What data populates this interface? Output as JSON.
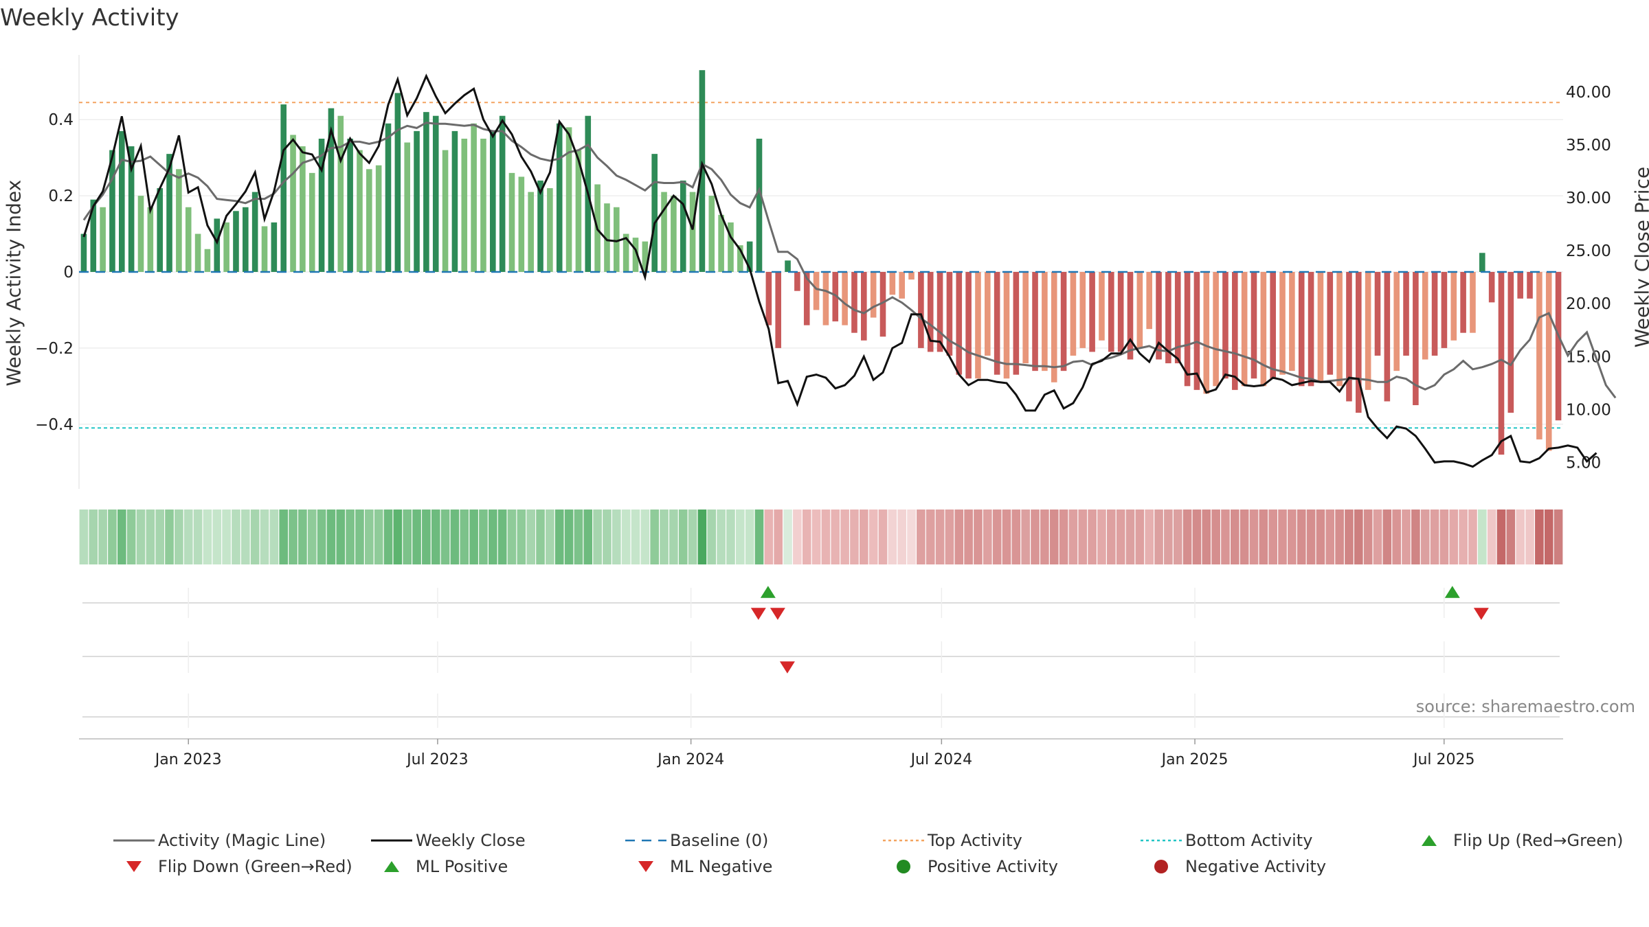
{
  "title": "Weekly Activity",
  "source_text": "source: sharemaestro.com",
  "colors": {
    "dark_green": "#2e8b57",
    "light_green": "#7fbf7b",
    "dark_red": "#c85a5a",
    "light_red": "#e8967a",
    "magic_line": "#6b6b6b",
    "close_line": "#111111",
    "baseline": "#1f77b4",
    "top_activity": "#f4a460",
    "bottom_activity": "#22c5c5",
    "flip_up": "#2ca02c",
    "flip_down": "#d62728",
    "positive_activity": "#228b22",
    "negative_activity": "#b22222"
  },
  "chart_data": {
    "type": "bar",
    "title": "Weekly Activity",
    "ylabel_left": "Weekly Activity Index",
    "ylabel_right": "Weekly Close Price",
    "ylim_left": [
      -0.57,
      0.57
    ],
    "ylim_right": [
      2.5,
      43.5
    ],
    "yticks_left": [
      {
        "v": 0.4,
        "label": "0.4"
      },
      {
        "v": 0.2,
        "label": "0.2"
      },
      {
        "v": 0.0,
        "label": "0"
      },
      {
        "v": -0.2,
        "label": "−0.2"
      },
      {
        "v": -0.4,
        "label": "−0.4"
      }
    ],
    "yticks_right": [
      "40.00",
      "35.00",
      "30.00",
      "25.00",
      "20.00",
      "15.00",
      "10.00",
      "5.00"
    ],
    "x_start": "2022-10-17",
    "x_end": "2025-09-22",
    "xticks": [
      {
        "date": "2023-01-01",
        "label": "Jan 2023"
      },
      {
        "date": "2023-07-01",
        "label": "Jul 2023"
      },
      {
        "date": "2024-01-01",
        "label": "Jan 2024"
      },
      {
        "date": "2024-07-01",
        "label": "Jul 2024"
      },
      {
        "date": "2025-01-01",
        "label": "Jan 2025"
      },
      {
        "date": "2025-07-01",
        "label": "Jul 2025"
      }
    ],
    "top_activity": 0.445,
    "bottom_activity": -0.41,
    "baseline": 0,
    "activity": [
      0.1,
      0.19,
      0.17,
      0.32,
      0.37,
      0.33,
      0.2,
      0.17,
      0.22,
      0.31,
      0.27,
      0.17,
      0.1,
      0.06,
      0.14,
      0.13,
      0.16,
      0.17,
      0.21,
      0.12,
      0.13,
      0.44,
      0.36,
      0.33,
      0.26,
      0.35,
      0.43,
      0.41,
      0.35,
      0.32,
      0.27,
      0.28,
      0.39,
      0.47,
      0.34,
      0.37,
      0.42,
      0.41,
      0.32,
      0.37,
      0.35,
      0.39,
      0.35,
      0.37,
      0.41,
      0.26,
      0.25,
      0.21,
      0.24,
      0.22,
      0.39,
      0.38,
      0.32,
      0.41,
      0.23,
      0.18,
      0.17,
      0.1,
      0.09,
      0.08,
      0.31,
      0.21,
      0.2,
      0.24,
      0.21,
      0.53,
      0.2,
      0.15,
      0.13,
      0.07,
      0.08,
      0.35,
      -0.14,
      -0.2,
      0.03,
      -0.05,
      -0.14,
      -0.1,
      -0.14,
      -0.13,
      -0.14,
      -0.16,
      -0.18,
      -0.12,
      -0.17,
      -0.06,
      -0.07,
      -0.02,
      -0.2,
      -0.21,
      -0.21,
      -0.22,
      -0.27,
      -0.28,
      -0.28,
      -0.22,
      -0.27,
      -0.28,
      -0.27,
      -0.24,
      -0.26,
      -0.26,
      -0.29,
      -0.26,
      -0.22,
      -0.2,
      -0.21,
      -0.18,
      -0.21,
      -0.21,
      -0.23,
      -0.2,
      -0.15,
      -0.23,
      -0.24,
      -0.24,
      -0.3,
      -0.31,
      -0.32,
      -0.3,
      -0.28,
      -0.31,
      -0.3,
      -0.28,
      -0.3,
      -0.28,
      -0.27,
      -0.26,
      -0.3,
      -0.3,
      -0.29,
      -0.27,
      -0.3,
      -0.34,
      -0.37,
      -0.31,
      -0.22,
      -0.34,
      -0.26,
      -0.22,
      -0.35,
      -0.23,
      -0.22,
      -0.2,
      -0.18,
      -0.16,
      -0.16,
      0.05,
      -0.08,
      -0.48,
      -0.37,
      -0.07,
      -0.07,
      -0.44,
      -0.47,
      -0.39
    ],
    "bar_shade": [
      1,
      1,
      0,
      1,
      1,
      1,
      0,
      0,
      1,
      1,
      0,
      0,
      0,
      0,
      1,
      0,
      1,
      1,
      1,
      0,
      1,
      1,
      0,
      0,
      0,
      1,
      1,
      0,
      1,
      0,
      0,
      0,
      1,
      1,
      0,
      1,
      1,
      1,
      0,
      1,
      0,
      0,
      0,
      1,
      1,
      0,
      0,
      0,
      1,
      0,
      1,
      0,
      0,
      1,
      0,
      0,
      0,
      0,
      0,
      0,
      1,
      0,
      0,
      1,
      0,
      1,
      0,
      0,
      0,
      0,
      1,
      1,
      1,
      1,
      1,
      1,
      1,
      0,
      0,
      1,
      0,
      1,
      1,
      0,
      1,
      0,
      0,
      0,
      1,
      1,
      1,
      1,
      1,
      1,
      0,
      0,
      1,
      0,
      1,
      0,
      1,
      0,
      0,
      1,
      0,
      0,
      1,
      0,
      1,
      1,
      1,
      0,
      0,
      1,
      1,
      1,
      1,
      1,
      0,
      0,
      1,
      1,
      0,
      1,
      0,
      1,
      0,
      0,
      1,
      1,
      0,
      1,
      0,
      1,
      1,
      0,
      1,
      1,
      0,
      1,
      1,
      0,
      1,
      1,
      0,
      1,
      0,
      1,
      1,
      1,
      1,
      1,
      1,
      0,
      0,
      1,
      1,
      0
    ],
    "magic_line": [
      27.9,
      29.2,
      30.3,
      31.8,
      33.6,
      33.4,
      33.5,
      33.9,
      33.1,
      32.3,
      31.9,
      32.3,
      31.9,
      31.1,
      29.9,
      29.8,
      29.7,
      29.5,
      29.9,
      29.9,
      30.4,
      31.5,
      32.3,
      33.3,
      33.6,
      34.0,
      34.7,
      34.8,
      35.3,
      35.3,
      35.1,
      35.3,
      35.7,
      36.4,
      36.8,
      36.6,
      37.1,
      37.0,
      37.0,
      36.9,
      36.8,
      36.9,
      36.5,
      36.3,
      36.3,
      35.4,
      34.8,
      34.1,
      33.7,
      33.5,
      33.7,
      34.3,
      34.5,
      35.0,
      33.8,
      33.0,
      32.1,
      31.7,
      31.2,
      30.7,
      31.5,
      31.4,
      31.4,
      31.5,
      31.0,
      33.2,
      32.7,
      31.7,
      30.3,
      29.5,
      29.1,
      30.8,
      27.8,
      24.9,
      24.9,
      24.2,
      22.4,
      21.4,
      21.2,
      20.8,
      20.0,
      19.4,
      19.1,
      19.7,
      20.1,
      20.6,
      20.1,
      19.4,
      18.6,
      18.0,
      17.3,
      16.5,
      16.0,
      15.4,
      15.1,
      14.8,
      14.5,
      14.3,
      14.3,
      14.2,
      14.1,
      14.1,
      14.0,
      14.1,
      14.5,
      14.6,
      14.2,
      14.7,
      14.9,
      15.2,
      15.6,
      15.8,
      16.0,
      15.6,
      15.5,
      15.9,
      16.1,
      16.4,
      16.0,
      15.7,
      15.5,
      15.3,
      15.0,
      14.7,
      14.2,
      13.8,
      13.6,
      13.3,
      13.0,
      12.9,
      12.6,
      12.7,
      12.8,
      12.9,
      12.9,
      12.8,
      12.6,
      12.6,
      13.1,
      12.9,
      12.3,
      11.9,
      12.3,
      13.3,
      13.8,
      14.6,
      13.8,
      14.0,
      14.3,
      14.7,
      14.2,
      15.6,
      16.6,
      18.7,
      19.1,
      17.0,
      15.1,
      16.4,
      17.3,
      14.8,
      12.3,
      11.1
    ],
    "close": [
      26.3,
      29.2,
      30.6,
      33.9,
      37.7,
      32.7,
      34.9,
      28.8,
      30.9,
      32.8,
      35.9,
      30.5,
      31.0,
      27.4,
      25.8,
      28.3,
      29.4,
      30.6,
      32.4,
      28.0,
      30.6,
      34.5,
      35.5,
      34.3,
      34.1,
      32.6,
      36.4,
      33.5,
      35.6,
      34.2,
      33.3,
      34.9,
      38.8,
      41.2,
      37.8,
      39.4,
      41.5,
      39.6,
      38.0,
      38.9,
      39.7,
      40.3,
      37.4,
      35.8,
      37.3,
      36.0,
      33.9,
      32.5,
      30.5,
      32.4,
      37.2,
      36.0,
      33.6,
      30.4,
      27.0,
      26.0,
      25.9,
      26.2,
      25.1,
      22.5,
      27.6,
      28.9,
      30.2,
      29.4,
      27.0,
      33.2,
      31.3,
      28.4,
      26.3,
      25.1,
      23.3,
      20.2,
      17.6,
      12.5,
      12.7,
      10.5,
      13.1,
      13.3,
      13.0,
      12.0,
      12.3,
      13.2,
      15.0,
      12.8,
      13.5,
      15.8,
      16.3,
      19.0,
      19.0,
      16.5,
      16.4,
      15.0,
      13.3,
      12.3,
      12.8,
      12.8,
      12.6,
      12.5,
      11.4,
      9.9,
      9.9,
      11.4,
      11.8,
      10.1,
      10.6,
      12.1,
      14.3,
      14.6,
      15.3,
      15.3,
      16.6,
      15.3,
      14.5,
      16.3,
      15.5,
      14.8,
      13.3,
      13.4,
      11.6,
      11.9,
      13.3,
      13.1,
      12.3,
      12.2,
      12.3,
      13.0,
      12.8,
      12.3,
      12.5,
      12.7,
      12.6,
      12.6,
      11.7,
      13.0,
      12.9,
      9.3,
      8.2,
      7.3,
      8.4,
      8.2,
      7.5,
      6.3,
      5.0,
      5.1,
      5.1,
      4.9,
      4.6,
      5.2,
      5.7,
      7.0,
      7.5,
      5.1,
      5.0,
      5.4,
      6.3,
      6.4,
      6.6,
      6.4,
      5.1,
      5.9
    ],
    "strip_colors": [
      "#b6ddbd",
      "#a6d5ae",
      "#a6d5ae",
      "#8fcb99",
      "#6dbb7e",
      "#8fcb99",
      "#a6d5ae",
      "#a6d5ae",
      "#a6d5ae",
      "#8fcb99",
      "#a6d5ae",
      "#b6ddbd",
      "#b6ddbd",
      "#c5e5ca",
      "#c5e5ca",
      "#c5e5ca",
      "#b6ddbd",
      "#b6ddbd",
      "#a6d5ae",
      "#b6ddbd",
      "#b6ddbd",
      "#6dbb7e",
      "#7cc28a",
      "#7cc28a",
      "#8fcb99",
      "#7cc28a",
      "#6dbb7e",
      "#6dbb7e",
      "#7cc28a",
      "#7cc28a",
      "#8fcb99",
      "#8fcb99",
      "#6dbb7e",
      "#5cb46f",
      "#7cc28a",
      "#6dbb7e",
      "#6dbb7e",
      "#6dbb7e",
      "#7cc28a",
      "#6dbb7e",
      "#7cc28a",
      "#6dbb7e",
      "#7cc28a",
      "#6dbb7e",
      "#6dbb7e",
      "#8fcb99",
      "#8fcb99",
      "#a6d5ae",
      "#8fcb99",
      "#a6d5ae",
      "#6dbb7e",
      "#6dbb7e",
      "#7cc28a",
      "#6dbb7e",
      "#a6d5ae",
      "#a6d5ae",
      "#b6ddbd",
      "#c5e5ca",
      "#c5e5ca",
      "#c5e5ca",
      "#8fcb99",
      "#a6d5ae",
      "#a6d5ae",
      "#8fcb99",
      "#a6d5ae",
      "#4aa85f",
      "#a6d5ae",
      "#b6ddbd",
      "#b6ddbd",
      "#c5e5ca",
      "#c5e5ca",
      "#6dbb7e",
      "#e8b3b3",
      "#e4a9a9",
      "#d9ecdc",
      "#f2cfcf",
      "#e8b3b3",
      "#ecbcbc",
      "#e8b3b3",
      "#e8b3b3",
      "#e8b3b3",
      "#e6b0b0",
      "#e3a9a9",
      "#ecbcbc",
      "#e6b0b0",
      "#f2d3d3",
      "#f2d3d3",
      "#f4dada",
      "#dea0a0",
      "#dea0a0",
      "#dea0a0",
      "#dea0a0",
      "#d99595",
      "#d99595",
      "#d99595",
      "#dea0a0",
      "#d99595",
      "#d99595",
      "#d99595",
      "#dca0a0",
      "#d99595",
      "#d99595",
      "#d58e8e",
      "#d99595",
      "#dea0a0",
      "#dea0a0",
      "#dea0a0",
      "#e3a9a9",
      "#dea0a0",
      "#dea0a0",
      "#dca0a0",
      "#dea0a0",
      "#e6b0b0",
      "#dca0a0",
      "#dca0a0",
      "#dca0a0",
      "#d58e8e",
      "#d38b8b",
      "#d38b8b",
      "#d58e8e",
      "#d99595",
      "#d58e8e",
      "#d58e8e",
      "#d99595",
      "#d58e8e",
      "#d99595",
      "#d99595",
      "#d99595",
      "#d58e8e",
      "#d58e8e",
      "#d58e8e",
      "#d99595",
      "#d58e8e",
      "#d08585",
      "#cd7f7f",
      "#d58e8e",
      "#dea0a0",
      "#d08585",
      "#d99595",
      "#dea0a0",
      "#d08585",
      "#dca0a0",
      "#dea0a0",
      "#dea0a0",
      "#e3a9a9",
      "#e6b0b0",
      "#e6b0b0",
      "#c5e5ca",
      "#efc7c7",
      "#c46868",
      "#cd7f7f",
      "#efc7c7",
      "#efc7c7",
      "#c46868",
      "#c46868",
      "#cd7f7f"
    ],
    "events": {
      "flip_up": [
        "2024-02-26",
        "2025-07-07"
      ],
      "flip_down": [
        "2024-02-19",
        "2024-03-04",
        "2025-07-28"
      ],
      "ml_negative": [
        "2024-03-11"
      ]
    },
    "legend": [
      "Activity (Magic Line)",
      "Weekly Close",
      "Baseline (0)",
      "Top Activity",
      "Bottom Activity",
      "Flip Up (Red→Green)",
      "Flip Down (Green→Red)",
      "ML Positive",
      "ML Negative",
      "Positive Activity",
      "Negative Activity"
    ]
  }
}
